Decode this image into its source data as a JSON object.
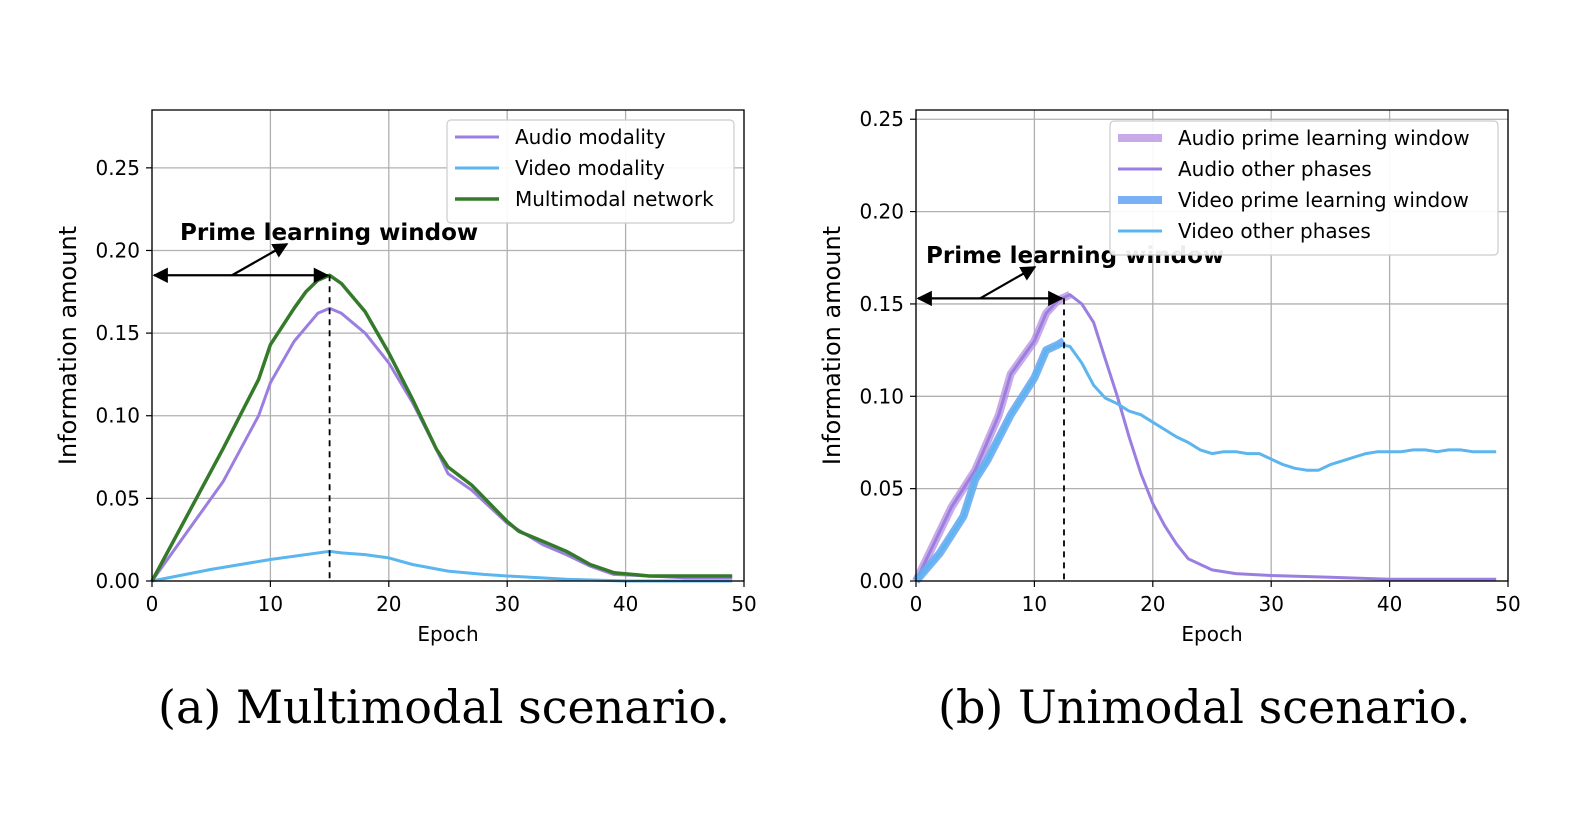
{
  "chart_data": [
    {
      "type": "line",
      "caption": "(a) Multimodal scenario.",
      "xlabel": "Epoch",
      "ylabel": "Information amount",
      "xlim": [
        0,
        50
      ],
      "ylim": [
        0,
        0.285
      ],
      "xticks": [
        0,
        10,
        20,
        30,
        40,
        50
      ],
      "yticks": [
        0.0,
        0.05,
        0.1,
        0.15,
        0.2,
        0.25
      ],
      "xtick_labels": [
        "0",
        "10",
        "20",
        "30",
        "40",
        "50"
      ],
      "ytick_labels": [
        "0.00",
        "0.05",
        "0.10",
        "0.15",
        "0.20",
        "0.25"
      ],
      "grid": true,
      "legend_position": "upper right",
      "annotation": {
        "text": "Prime learning window",
        "window_end_epoch": 15,
        "window_value": 0.185
      },
      "series": [
        {
          "name": "Audio modality",
          "color": "#9b7fe0",
          "width": 3,
          "points": [
            [
              0,
              0.0
            ],
            [
              3,
              0.03
            ],
            [
              6,
              0.06
            ],
            [
              9,
              0.1
            ],
            [
              10,
              0.12
            ],
            [
              12,
              0.145
            ],
            [
              14,
              0.162
            ],
            [
              15,
              0.165
            ],
            [
              16,
              0.162
            ],
            [
              18,
              0.15
            ],
            [
              20,
              0.132
            ],
            [
              22,
              0.108
            ],
            [
              24,
              0.08
            ],
            [
              25,
              0.065
            ],
            [
              27,
              0.055
            ],
            [
              30,
              0.035
            ],
            [
              33,
              0.022
            ],
            [
              35,
              0.016
            ],
            [
              37,
              0.009
            ],
            [
              39,
              0.004
            ],
            [
              42,
              0.003
            ],
            [
              45,
              0.002
            ],
            [
              49,
              0.002
            ]
          ]
        },
        {
          "name": "Video modality",
          "color": "#5bb5ee",
          "width": 3,
          "points": [
            [
              0,
              0.0
            ],
            [
              5,
              0.007
            ],
            [
              10,
              0.013
            ],
            [
              15,
              0.018
            ],
            [
              16,
              0.017
            ],
            [
              18,
              0.016
            ],
            [
              20,
              0.014
            ],
            [
              22,
              0.01
            ],
            [
              25,
              0.006
            ],
            [
              28,
              0.004
            ],
            [
              30,
              0.003
            ],
            [
              35,
              0.001
            ],
            [
              40,
              0.0
            ],
            [
              45,
              0.0
            ],
            [
              49,
              0.0
            ]
          ]
        },
        {
          "name": "Multimodal network",
          "color": "#357a2a",
          "width": 3.5,
          "points": [
            [
              0,
              0.0
            ],
            [
              3,
              0.04
            ],
            [
              6,
              0.08
            ],
            [
              9,
              0.122
            ],
            [
              10,
              0.143
            ],
            [
              12,
              0.165
            ],
            [
              13,
              0.175
            ],
            [
              14,
              0.182
            ],
            [
              15,
              0.185
            ],
            [
              16,
              0.18
            ],
            [
              18,
              0.163
            ],
            [
              20,
              0.138
            ],
            [
              22,
              0.11
            ],
            [
              24,
              0.08
            ],
            [
              25,
              0.069
            ],
            [
              27,
              0.058
            ],
            [
              30,
              0.036
            ],
            [
              31,
              0.03
            ],
            [
              33,
              0.024
            ],
            [
              35,
              0.018
            ],
            [
              37,
              0.01
            ],
            [
              39,
              0.005
            ],
            [
              42,
              0.003
            ],
            [
              45,
              0.003
            ],
            [
              49,
              0.003
            ]
          ]
        }
      ]
    },
    {
      "type": "line",
      "caption": "(b) Unimodal scenario.",
      "xlabel": "Epoch",
      "ylabel": "Information amount",
      "xlim": [
        0,
        50
      ],
      "ylim": [
        0,
        0.255
      ],
      "xticks": [
        0,
        10,
        20,
        30,
        40,
        50
      ],
      "yticks": [
        0.0,
        0.05,
        0.1,
        0.15,
        0.2,
        0.25
      ],
      "xtick_labels": [
        "0",
        "10",
        "20",
        "30",
        "40",
        "50"
      ],
      "ytick_labels": [
        "0.00",
        "0.05",
        "0.10",
        "0.15",
        "0.20",
        "0.25"
      ],
      "grid": true,
      "legend_position": "upper right",
      "annotation": {
        "text": "Prime learning window",
        "window_end_epoch": 12.5,
        "window_value": 0.153
      },
      "series": [
        {
          "name": "Audio prime learning window",
          "color": "#b78de0",
          "width": 8,
          "opacity": 0.75,
          "points": [
            [
              0,
              0.0
            ],
            [
              3,
              0.04
            ],
            [
              5,
              0.06
            ],
            [
              7,
              0.09
            ],
            [
              8,
              0.112
            ],
            [
              10,
              0.13
            ],
            [
              11,
              0.145
            ],
            [
              12,
              0.152
            ],
            [
              13,
              0.155
            ]
          ]
        },
        {
          "name": "Audio other phases",
          "color": "#9b7fe0",
          "width": 3,
          "points": [
            [
              0,
              0.0
            ],
            [
              3,
              0.04
            ],
            [
              5,
              0.06
            ],
            [
              7,
              0.09
            ],
            [
              8,
              0.112
            ],
            [
              10,
              0.13
            ],
            [
              11,
              0.145
            ],
            [
              12,
              0.152
            ],
            [
              13,
              0.155
            ],
            [
              14,
              0.15
            ],
            [
              15,
              0.14
            ],
            [
              16,
              0.12
            ],
            [
              17,
              0.1
            ],
            [
              18,
              0.078
            ],
            [
              19,
              0.058
            ],
            [
              20,
              0.042
            ],
            [
              21,
              0.03
            ],
            [
              22,
              0.02
            ],
            [
              23,
              0.012
            ],
            [
              25,
              0.006
            ],
            [
              27,
              0.004
            ],
            [
              30,
              0.003
            ],
            [
              35,
              0.002
            ],
            [
              40,
              0.001
            ],
            [
              45,
              0.001
            ],
            [
              49,
              0.001
            ]
          ]
        },
        {
          "name": "Video prime learning window",
          "color": "#6ca8f3",
          "width": 8,
          "opacity": 0.9,
          "points": [
            [
              0,
              0.0
            ],
            [
              2,
              0.015
            ],
            [
              4,
              0.035
            ],
            [
              5,
              0.055
            ],
            [
              6,
              0.065
            ],
            [
              8,
              0.09
            ],
            [
              10,
              0.11
            ],
            [
              11,
              0.125
            ],
            [
              12,
              0.128
            ],
            [
              12.5,
              0.13
            ]
          ]
        },
        {
          "name": "Video other phases",
          "color": "#5bb5ee",
          "width": 3,
          "points": [
            [
              0,
              0.0
            ],
            [
              2,
              0.015
            ],
            [
              4,
              0.035
            ],
            [
              5,
              0.055
            ],
            [
              6,
              0.065
            ],
            [
              8,
              0.09
            ],
            [
              10,
              0.11
            ],
            [
              11,
              0.125
            ],
            [
              12,
              0.128
            ],
            [
              13,
              0.127
            ],
            [
              14,
              0.118
            ],
            [
              15,
              0.106
            ],
            [
              16,
              0.099
            ],
            [
              17,
              0.096
            ],
            [
              18,
              0.092
            ],
            [
              19,
              0.09
            ],
            [
              20,
              0.086
            ],
            [
              21,
              0.082
            ],
            [
              22,
              0.078
            ],
            [
              23,
              0.075
            ],
            [
              24,
              0.071
            ],
            [
              25,
              0.069
            ],
            [
              26,
              0.07
            ],
            [
              27,
              0.07
            ],
            [
              28,
              0.069
            ],
            [
              29,
              0.069
            ],
            [
              30,
              0.066
            ],
            [
              31,
              0.063
            ],
            [
              32,
              0.061
            ],
            [
              33,
              0.06
            ],
            [
              34,
              0.06
            ],
            [
              35,
              0.063
            ],
            [
              36,
              0.065
            ],
            [
              37,
              0.067
            ],
            [
              38,
              0.069
            ],
            [
              39,
              0.07
            ],
            [
              40,
              0.07
            ],
            [
              41,
              0.07
            ],
            [
              42,
              0.071
            ],
            [
              43,
              0.071
            ],
            [
              44,
              0.07
            ],
            [
              45,
              0.071
            ],
            [
              46,
              0.071
            ],
            [
              47,
              0.07
            ],
            [
              48,
              0.07
            ],
            [
              49,
              0.07
            ]
          ]
        }
      ]
    }
  ]
}
